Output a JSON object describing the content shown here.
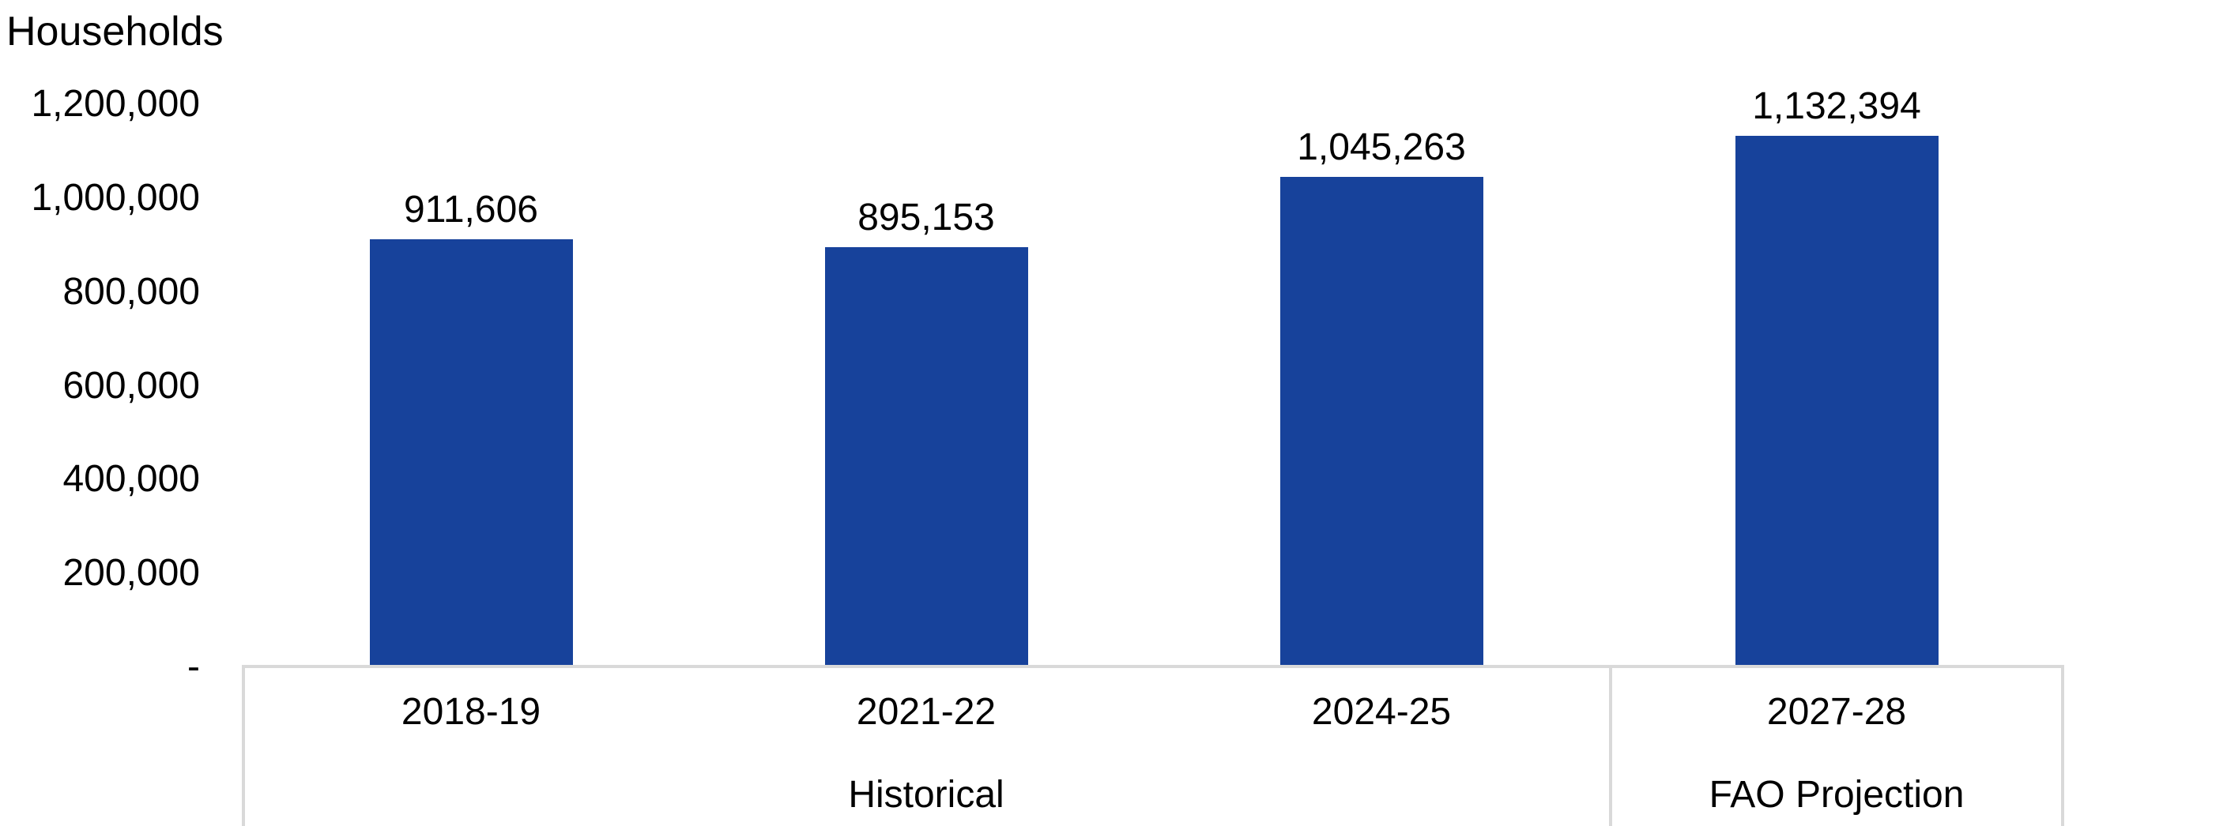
{
  "chart_data": {
    "type": "bar",
    "title": "Households",
    "categories": [
      "2018-19",
      "2021-22",
      "2024-25",
      "2027-28"
    ],
    "values": [
      911606,
      895153,
      1045263,
      1132394
    ],
    "value_labels": [
      "911,606",
      "895,153",
      "1,045,263",
      "1,132,394"
    ],
    "series": [
      {
        "name": "Households",
        "values": [
          911606,
          895153,
          1045263,
          1132394
        ]
      }
    ],
    "group_labels": [
      {
        "label": "Historical",
        "span": 3
      },
      {
        "label": "FAO Projection",
        "span": 1
      }
    ],
    "xlabel": "",
    "ylabel": "Households",
    "ylim": [
      0,
      1200000
    ],
    "y_ticks": [
      {
        "value": 0,
        "label": "-"
      },
      {
        "value": 200000,
        "label": "200,000"
      },
      {
        "value": 400000,
        "label": "400,000"
      },
      {
        "value": 600000,
        "label": "600,000"
      },
      {
        "value": 800000,
        "label": "800,000"
      },
      {
        "value": 1000000,
        "label": "1,000,000"
      },
      {
        "value": 1200000,
        "label": "1,200,000"
      }
    ],
    "grid": "off",
    "legend": "none",
    "colors": {
      "bar_fill": "#17429B",
      "axis_border": "#D9D9D9",
      "text": "#000000",
      "background": "#FFFFFF"
    }
  }
}
